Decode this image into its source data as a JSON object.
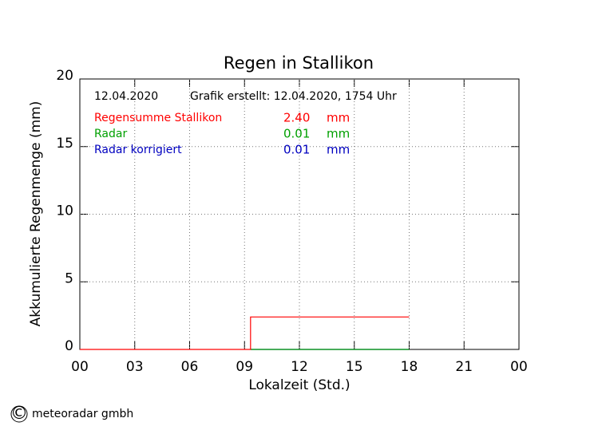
{
  "chart_data": {
    "type": "line",
    "title": "Regen in Stallikon",
    "date": "12.04.2020",
    "created": "Grafik erstellt: 12.04.2020, 1754 Uhr",
    "xlabel": "Lokalzeit (Std.)",
    "ylabel": "Akkumulierte Regenmenge (mm)",
    "x": [
      0,
      9.33,
      9.33,
      18
    ],
    "series": [
      {
        "name": "Regensumme Stallikon",
        "color": "#ff0000",
        "values": [
          0,
          0,
          2.4,
          2.4
        ],
        "total": {
          "value": 2.4,
          "label": "2.40"
        },
        "unit": "mm"
      },
      {
        "name": "Radar",
        "color": "#00a000",
        "values": [
          null,
          0,
          0,
          0
        ],
        "total": 0.01,
        "unit": "mm"
      },
      {
        "name": "Radar korrigiert",
        "color": "#0000c0",
        "values": [
          null,
          0,
          0,
          0
        ],
        "total": 0.01,
        "unit": "mm"
      }
    ],
    "xlim": [
      0,
      24
    ],
    "xticks": [
      {
        "value": 0,
        "label": "00"
      },
      {
        "value": 3,
        "label": "03"
      },
      {
        "value": 6,
        "label": "06"
      },
      {
        "value": 9,
        "label": "09"
      },
      12,
      15,
      18,
      21,
      {
        "value": 24,
        "label": "00"
      }
    ],
    "ylim": [
      0,
      20
    ],
    "yticks": [
      0,
      5,
      10,
      15,
      20
    ],
    "grid": true,
    "credit_symbol": "©",
    "credit": "meteoradar gmbh"
  }
}
